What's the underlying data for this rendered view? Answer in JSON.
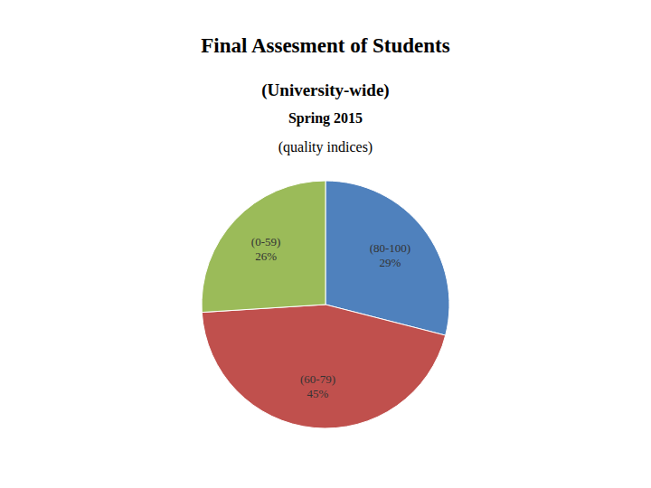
{
  "chart_data": {
    "type": "pie",
    "title": "Final Assesment of Students",
    "subtitle": [
      "(University-wide)",
      "Spring 2015",
      "(quality indices)"
    ],
    "categories": [
      "(80-100)",
      "(60-79)",
      "(0-59)"
    ],
    "values": [
      29,
      45,
      26
    ],
    "value_labels": [
      "29%",
      "45%",
      "26%"
    ],
    "colors": [
      "#4f81bd",
      "#c0504d",
      "#9bbb59"
    ],
    "data_labels": true
  }
}
